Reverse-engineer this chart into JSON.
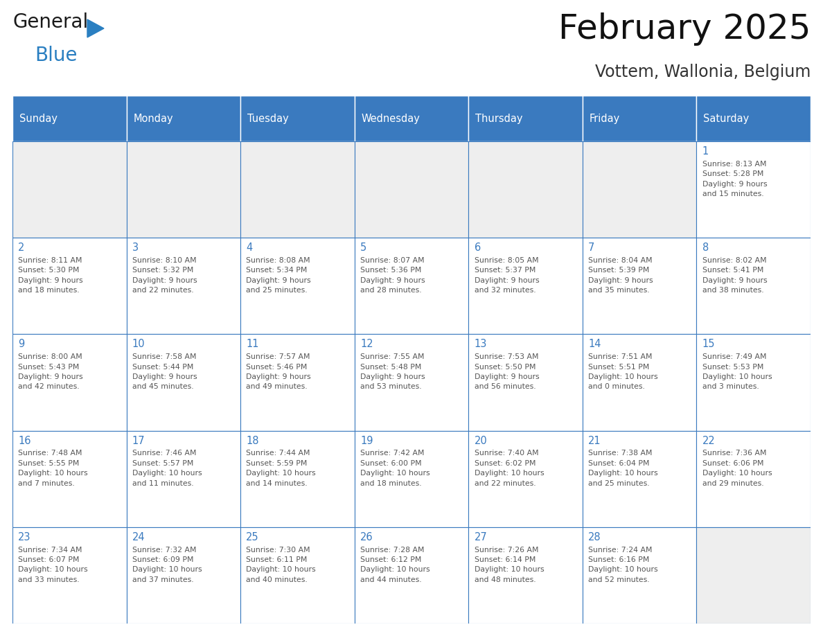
{
  "title": "February 2025",
  "subtitle": "Vottem, Wallonia, Belgium",
  "header_color": "#3a7abf",
  "header_text_color": "#ffffff",
  "grid_line_color": "#3a7abf",
  "day_number_color": "#3a7abf",
  "text_color": "#555555",
  "empty_cell_bg": "#eeeeee",
  "filled_cell_bg": "#ffffff",
  "days_of_week": [
    "Sunday",
    "Monday",
    "Tuesday",
    "Wednesday",
    "Thursday",
    "Friday",
    "Saturday"
  ],
  "weeks": [
    [
      {
        "day": null,
        "info": null
      },
      {
        "day": null,
        "info": null
      },
      {
        "day": null,
        "info": null
      },
      {
        "day": null,
        "info": null
      },
      {
        "day": null,
        "info": null
      },
      {
        "day": null,
        "info": null
      },
      {
        "day": "1",
        "info": "Sunrise: 8:13 AM\nSunset: 5:28 PM\nDaylight: 9 hours\nand 15 minutes."
      }
    ],
    [
      {
        "day": "2",
        "info": "Sunrise: 8:11 AM\nSunset: 5:30 PM\nDaylight: 9 hours\nand 18 minutes."
      },
      {
        "day": "3",
        "info": "Sunrise: 8:10 AM\nSunset: 5:32 PM\nDaylight: 9 hours\nand 22 minutes."
      },
      {
        "day": "4",
        "info": "Sunrise: 8:08 AM\nSunset: 5:34 PM\nDaylight: 9 hours\nand 25 minutes."
      },
      {
        "day": "5",
        "info": "Sunrise: 8:07 AM\nSunset: 5:36 PM\nDaylight: 9 hours\nand 28 minutes."
      },
      {
        "day": "6",
        "info": "Sunrise: 8:05 AM\nSunset: 5:37 PM\nDaylight: 9 hours\nand 32 minutes."
      },
      {
        "day": "7",
        "info": "Sunrise: 8:04 AM\nSunset: 5:39 PM\nDaylight: 9 hours\nand 35 minutes."
      },
      {
        "day": "8",
        "info": "Sunrise: 8:02 AM\nSunset: 5:41 PM\nDaylight: 9 hours\nand 38 minutes."
      }
    ],
    [
      {
        "day": "9",
        "info": "Sunrise: 8:00 AM\nSunset: 5:43 PM\nDaylight: 9 hours\nand 42 minutes."
      },
      {
        "day": "10",
        "info": "Sunrise: 7:58 AM\nSunset: 5:44 PM\nDaylight: 9 hours\nand 45 minutes."
      },
      {
        "day": "11",
        "info": "Sunrise: 7:57 AM\nSunset: 5:46 PM\nDaylight: 9 hours\nand 49 minutes."
      },
      {
        "day": "12",
        "info": "Sunrise: 7:55 AM\nSunset: 5:48 PM\nDaylight: 9 hours\nand 53 minutes."
      },
      {
        "day": "13",
        "info": "Sunrise: 7:53 AM\nSunset: 5:50 PM\nDaylight: 9 hours\nand 56 minutes."
      },
      {
        "day": "14",
        "info": "Sunrise: 7:51 AM\nSunset: 5:51 PM\nDaylight: 10 hours\nand 0 minutes."
      },
      {
        "day": "15",
        "info": "Sunrise: 7:49 AM\nSunset: 5:53 PM\nDaylight: 10 hours\nand 3 minutes."
      }
    ],
    [
      {
        "day": "16",
        "info": "Sunrise: 7:48 AM\nSunset: 5:55 PM\nDaylight: 10 hours\nand 7 minutes."
      },
      {
        "day": "17",
        "info": "Sunrise: 7:46 AM\nSunset: 5:57 PM\nDaylight: 10 hours\nand 11 minutes."
      },
      {
        "day": "18",
        "info": "Sunrise: 7:44 AM\nSunset: 5:59 PM\nDaylight: 10 hours\nand 14 minutes."
      },
      {
        "day": "19",
        "info": "Sunrise: 7:42 AM\nSunset: 6:00 PM\nDaylight: 10 hours\nand 18 minutes."
      },
      {
        "day": "20",
        "info": "Sunrise: 7:40 AM\nSunset: 6:02 PM\nDaylight: 10 hours\nand 22 minutes."
      },
      {
        "day": "21",
        "info": "Sunrise: 7:38 AM\nSunset: 6:04 PM\nDaylight: 10 hours\nand 25 minutes."
      },
      {
        "day": "22",
        "info": "Sunrise: 7:36 AM\nSunset: 6:06 PM\nDaylight: 10 hours\nand 29 minutes."
      }
    ],
    [
      {
        "day": "23",
        "info": "Sunrise: 7:34 AM\nSunset: 6:07 PM\nDaylight: 10 hours\nand 33 minutes."
      },
      {
        "day": "24",
        "info": "Sunrise: 7:32 AM\nSunset: 6:09 PM\nDaylight: 10 hours\nand 37 minutes."
      },
      {
        "day": "25",
        "info": "Sunrise: 7:30 AM\nSunset: 6:11 PM\nDaylight: 10 hours\nand 40 minutes."
      },
      {
        "day": "26",
        "info": "Sunrise: 7:28 AM\nSunset: 6:12 PM\nDaylight: 10 hours\nand 44 minutes."
      },
      {
        "day": "27",
        "info": "Sunrise: 7:26 AM\nSunset: 6:14 PM\nDaylight: 10 hours\nand 48 minutes."
      },
      {
        "day": "28",
        "info": "Sunrise: 7:24 AM\nSunset: 6:16 PM\nDaylight: 10 hours\nand 52 minutes."
      },
      {
        "day": null,
        "info": null
      }
    ]
  ],
  "logo_general_color": "#1a1a1a",
  "logo_blue_color": "#2a7fc1",
  "logo_triangle_color": "#2a7fc1",
  "fig_width": 11.88,
  "fig_height": 9.18,
  "dpi": 100
}
